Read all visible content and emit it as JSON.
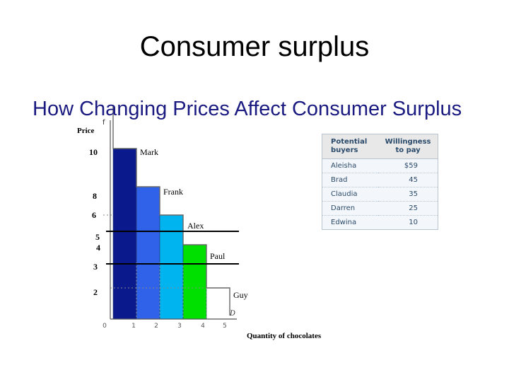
{
  "slide": {
    "title": "Consumer surplus",
    "subtitle": "How Changing Prices Affect Consumer Surplus"
  },
  "table": {
    "headers": [
      "Potential buyers",
      "Willingness to pay"
    ],
    "rows": [
      {
        "name": "Aleisha",
        "wtp": "$59"
      },
      {
        "name": "Brad",
        "wtp": "45"
      },
      {
        "name": "Claudia",
        "wtp": "35"
      },
      {
        "name": "Darren",
        "wtp": "25"
      },
      {
        "name": "Edwina",
        "wtp": "10"
      }
    ]
  },
  "chart_data": {
    "type": "bar",
    "title": "",
    "xlabel": "Quantity of chocolates",
    "ylabel": "Price",
    "corner_label": "f",
    "curve_label": "D",
    "x_ticks": [
      0,
      1,
      2,
      3,
      4,
      5
    ],
    "price_labels": [
      {
        "text": "10",
        "value": 10
      },
      {
        "text": "8",
        "value": 8
      },
      {
        "text": "6",
        "value": 6
      },
      {
        "text": "5",
        "value": 5
      },
      {
        "text": "4",
        "value": 4
      },
      {
        "text": "3",
        "value": 3
      },
      {
        "text": "2",
        "value": 2
      }
    ],
    "buyers": [
      {
        "name": "Mark",
        "price": 10,
        "color": "#0a1a8c"
      },
      {
        "name": "Frank",
        "price": 8,
        "color": "#2f62e8"
      },
      {
        "name": "Alex",
        "price": 6,
        "color": "#00b4f0"
      },
      {
        "name": "Paul",
        "price": 4,
        "color": "#00e000"
      },
      {
        "name": "Guy",
        "price": 2,
        "color": ""
      }
    ],
    "market_price_lines": [
      5,
      3
    ]
  }
}
